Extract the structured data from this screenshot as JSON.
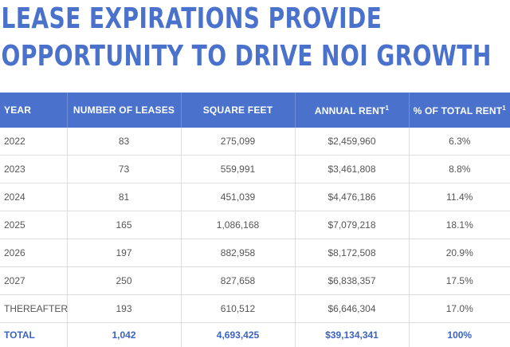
{
  "title_line1": "LEASE EXPIRATIONS PROVIDE",
  "title_line2": "OPPORTUNITY TO DRIVE NOI GROWTH",
  "table": {
    "headers": [
      "YEAR",
      "NUMBER OF LEASES",
      "SQUARE FEET",
      "ANNUAL RENT",
      "% OF TOTAL RENT"
    ],
    "header_superscripts": [
      "",
      "",
      "",
      "1",
      "1"
    ],
    "rows": [
      [
        "2022",
        "83",
        "275,099",
        "$2,459,960",
        "6.3%"
      ],
      [
        "2023",
        "73",
        "559,991",
        "$3,461,808",
        "8.8%"
      ],
      [
        "2024",
        "81",
        "451,039",
        "$4,476,186",
        "11.4%"
      ],
      [
        "2025",
        "165",
        "1,086,168",
        "$7,079,218",
        "18.1%"
      ],
      [
        "2026",
        "197",
        "882,958",
        "$8,172,508",
        "20.9%"
      ],
      [
        "2027",
        "250",
        "827,658",
        "$6,838,357",
        "17.5%"
      ],
      [
        "THEREAFTER",
        "193",
        "610,512",
        "$6,646,304",
        "17.0%"
      ]
    ],
    "total": [
      "TOTAL",
      "1,042",
      "4,693,425",
      "$39,134,341",
      "100%"
    ]
  },
  "colors": {
    "brand_blue": "#4a72cc",
    "total_text": "#3a63c4",
    "cell_text": "#555555",
    "grid": "#dddddd"
  }
}
